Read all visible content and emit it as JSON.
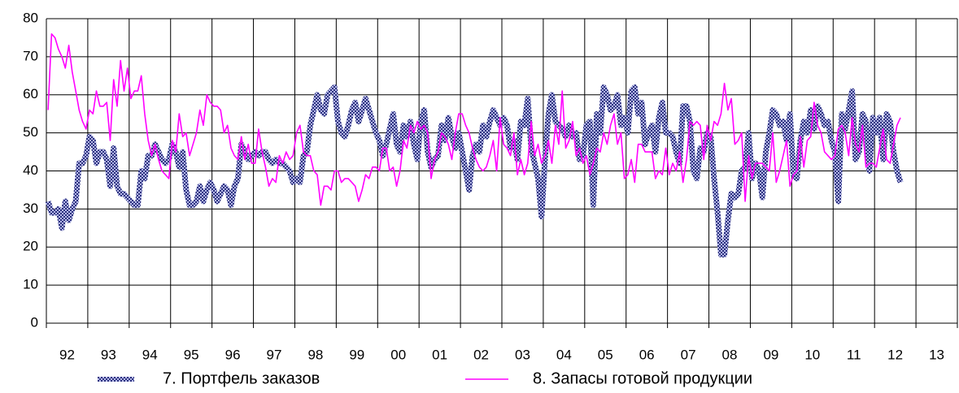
{
  "chart_data": {
    "type": "line",
    "categories": [
      "92",
      "93",
      "94",
      "95",
      "96",
      "97",
      "98",
      "99",
      "00",
      "01",
      "02",
      "03",
      "04",
      "05",
      "06",
      "07",
      "08",
      "09",
      "10",
      "11",
      "12",
      "13"
    ],
    "ylim": [
      0,
      80
    ],
    "yticks": [
      0,
      10,
      20,
      30,
      40,
      50,
      60,
      70,
      80
    ],
    "grid": true,
    "legend": "bottom",
    "series": [
      {
        "name": "7. Портфель заказов",
        "color": "#4b4f9e",
        "values": [
          [
            32,
            29,
            29,
            30,
            25,
            32,
            27,
            30,
            32,
            42,
            42,
            44
          ],
          [
            49,
            48,
            42,
            45,
            45,
            43,
            36,
            46,
            36,
            34,
            34,
            33
          ],
          [
            32,
            31,
            31,
            40,
            38,
            44,
            44,
            47,
            45,
            43,
            42,
            43
          ],
          [
            47,
            45,
            41,
            45,
            35,
            31,
            31,
            32,
            36,
            32,
            35,
            37
          ],
          [
            35,
            32,
            34,
            36,
            35,
            31,
            36,
            38,
            47,
            45,
            43,
            44
          ],
          [
            45,
            44,
            45,
            45,
            43,
            42,
            43,
            42,
            42,
            41,
            40,
            37
          ],
          [
            38,
            37,
            44,
            45,
            52,
            56,
            60,
            56,
            55,
            60,
            61,
            62
          ],
          [
            53,
            50,
            49,
            52,
            56,
            58,
            53,
            56,
            59,
            56,
            53,
            50
          ],
          [
            48,
            44,
            47,
            51,
            55,
            47,
            45,
            52,
            49,
            53,
            47,
            43
          ],
          [
            53,
            56,
            45,
            41,
            43,
            44,
            52,
            48,
            54,
            49,
            46,
            50
          ],
          [
            45,
            40,
            35,
            44,
            47,
            45,
            52,
            49,
            53,
            56,
            54,
            52
          ],
          [
            54,
            52,
            46,
            48,
            43,
            53,
            52,
            59,
            46,
            42,
            38,
            28
          ],
          [
            43,
            55,
            60,
            53,
            52,
            51,
            49,
            52,
            49,
            50,
            43,
            44
          ],
          [
            52,
            53,
            31,
            55,
            50,
            62,
            60,
            56,
            57,
            60,
            52,
            54
          ],
          [
            50,
            61,
            62,
            55,
            58,
            47,
            50,
            52,
            45,
            54,
            58,
            50
          ],
          [
            50,
            49,
            45,
            42,
            57,
            57,
            53,
            40,
            38,
            46,
            45,
            50
          ],
          [
            49,
            38,
            29,
            18,
            18,
            27,
            34,
            33,
            34,
            40,
            41,
            50
          ],
          [
            38,
            42,
            40,
            33,
            45,
            50,
            56,
            55,
            52,
            53,
            48,
            55
          ],
          [
            39,
            38,
            48,
            53,
            50,
            56,
            51,
            57,
            55,
            52,
            53,
            48
          ],
          [
            45,
            32,
            55,
            51,
            56,
            61,
            43,
            45,
            55,
            53,
            40,
            54
          ],
          [
            50,
            54,
            43,
            55,
            53,
            45,
            40,
            37
          ],
          null
        ]
      },
      {
        "name": "8. Запасы готовой продукции",
        "color": "#ff00ff",
        "values": [
          [
            56,
            76,
            75,
            72,
            70,
            67,
            73,
            66,
            61,
            56,
            53,
            51
          ],
          [
            56,
            55,
            61,
            57,
            57,
            58,
            48,
            64,
            57,
            69,
            61,
            67
          ],
          [
            59,
            61,
            61,
            65,
            55,
            48,
            44,
            47,
            43,
            40,
            39,
            38
          ],
          [
            48,
            45,
            55,
            49,
            50,
            44,
            47,
            50,
            56,
            52,
            60,
            58
          ],
          [
            57,
            57,
            56,
            50,
            52,
            46,
            44,
            43,
            49,
            43,
            47,
            42
          ],
          [
            42,
            51,
            45,
            41,
            36,
            38,
            37,
            44,
            42,
            45,
            43,
            44
          ],
          [
            50,
            52,
            45,
            44,
            44,
            40,
            39,
            31,
            36,
            36,
            35,
            40
          ],
          [
            40,
            37,
            38,
            38,
            37,
            36,
            32,
            35,
            39,
            38,
            41,
            41
          ],
          [
            40,
            46,
            46,
            40,
            41,
            36,
            40,
            48,
            46,
            52,
            50,
            53
          ],
          [
            51,
            52,
            50,
            38,
            43,
            45,
            50,
            49,
            47,
            43,
            50,
            55
          ],
          [
            55,
            52,
            50,
            46,
            43,
            41,
            40,
            41,
            44,
            48,
            40,
            54
          ],
          [
            47,
            46,
            44,
            50,
            39,
            43,
            39,
            42,
            53,
            44,
            47,
            42
          ],
          [
            44,
            48,
            42,
            52,
            47,
            61,
            46,
            48,
            53,
            44,
            46,
            42
          ],
          [
            44,
            39,
            42,
            46,
            45,
            50,
            47,
            52,
            55,
            47,
            50,
            38
          ],
          [
            39,
            43,
            37,
            47,
            47,
            45,
            45,
            45,
            38,
            40,
            39,
            46
          ],
          [
            39,
            42,
            40,
            45,
            37,
            43,
            53,
            52,
            53,
            52,
            43,
            52
          ],
          [
            48,
            53,
            52,
            55,
            63,
            56,
            59,
            47,
            48,
            50,
            32,
            44
          ],
          [
            38,
            42,
            42,
            42,
            41,
            40,
            50,
            37,
            40,
            44,
            48,
            36
          ],
          [
            39,
            40,
            49,
            41,
            48,
            49,
            58,
            52,
            50,
            45,
            44,
            43
          ],
          [
            44,
            51,
            52,
            50,
            44,
            54,
            47,
            45,
            52,
            41,
            42,
            42
          ],
          [
            41,
            46,
            51,
            43,
            42,
            47,
            52,
            54
          ],
          null
        ]
      }
    ]
  }
}
